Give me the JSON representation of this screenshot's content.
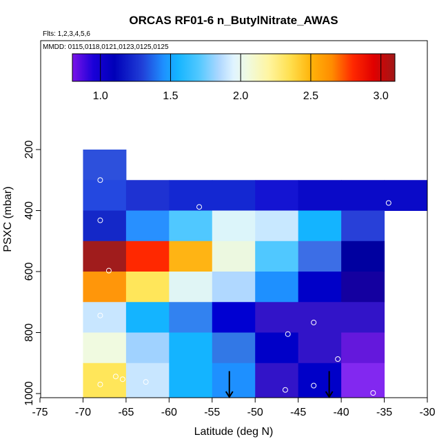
{
  "chart_data": {
    "type": "heatmap",
    "title": "ORCAS RF01-6 n_ButylNitrate_AWAS",
    "flights_label": "Flts: 1,2,3,4,5,6",
    "dates_label": "MMDD: 0115,0118,0121,0123,0125,0125",
    "xlabel": "Latitude (deg N)",
    "ylabel": "PSXC (mbar)",
    "xlim": [
      -75,
      -30
    ],
    "ylim": [
      1000,
      0
    ],
    "x_ticks": [
      -75,
      -70,
      -65,
      -60,
      -55,
      -50,
      -45,
      -40,
      -35,
      -30
    ],
    "y_ticks": [
      200,
      400,
      600,
      800,
      1000
    ],
    "colorbar": {
      "range": [
        0.8,
        3.1
      ],
      "ticks": [
        1.0,
        1.5,
        2.0,
        2.5,
        3.0
      ],
      "tick_labels": [
        "1.0",
        "1.5",
        "2.0",
        "2.5",
        "3.0"
      ],
      "stops": [
        {
          "v": 0.8,
          "c": "#7a14e8"
        },
        {
          "v": 0.95,
          "c": "#1a00d8"
        },
        {
          "v": 1.1,
          "c": "#0000b8"
        },
        {
          "v": 1.3,
          "c": "#2040d8"
        },
        {
          "v": 1.45,
          "c": "#1e90ff"
        },
        {
          "v": 1.55,
          "c": "#14b4ff"
        },
        {
          "v": 1.7,
          "c": "#50c8ff"
        },
        {
          "v": 1.85,
          "c": "#b0d8ff"
        },
        {
          "v": 1.95,
          "c": "#e0f4ff"
        },
        {
          "v": 2.05,
          "c": "#f0fae0"
        },
        {
          "v": 2.2,
          "c": "#fff5a0"
        },
        {
          "v": 2.35,
          "c": "#ffe050"
        },
        {
          "v": 2.5,
          "c": "#ffb40a"
        },
        {
          "v": 2.65,
          "c": "#ff8c00"
        },
        {
          "v": 2.8,
          "c": "#ff2800"
        },
        {
          "v": 2.95,
          "c": "#e00000"
        },
        {
          "v": 3.1,
          "c": "#a01818"
        }
      ]
    },
    "cells": [
      {
        "x0": -70,
        "x1": -65,
        "y0": 200,
        "y1": 300,
        "color": "#2d50dc"
      },
      {
        "x0": -70,
        "x1": -65,
        "y0": 300,
        "y1": 400,
        "color": "#2448e0"
      },
      {
        "x0": -65,
        "x1": -60,
        "y0": 300,
        "y1": 400,
        "color": "#1e32d2"
      },
      {
        "x0": -60,
        "x1": -55,
        "y0": 300,
        "y1": 400,
        "color": "#1428d2"
      },
      {
        "x0": -55,
        "x1": -50,
        "y0": 300,
        "y1": 400,
        "color": "#1428d2"
      },
      {
        "x0": -50,
        "x1": -45,
        "y0": 300,
        "y1": 400,
        "color": "#1414d2"
      },
      {
        "x0": -45,
        "x1": -40,
        "y0": 300,
        "y1": 400,
        "color": "#0a0ac8"
      },
      {
        "x0": -40,
        "x1": -35,
        "y0": 300,
        "y1": 400,
        "color": "#0a0ac8"
      },
      {
        "x0": -35,
        "x1": -30,
        "y0": 300,
        "y1": 400,
        "color": "#0a0ac8"
      },
      {
        "x0": -70,
        "x1": -65,
        "y0": 400,
        "y1": 500,
        "color": "#1428c8"
      },
      {
        "x0": -65,
        "x1": -60,
        "y0": 400,
        "y1": 500,
        "color": "#2890ff"
      },
      {
        "x0": -60,
        "x1": -55,
        "y0": 400,
        "y1": 500,
        "color": "#50c8ff"
      },
      {
        "x0": -55,
        "x1": -50,
        "y0": 400,
        "y1": 500,
        "color": "#dcf5fa"
      },
      {
        "x0": -50,
        "x1": -45,
        "y0": 400,
        "y1": 500,
        "color": "#c8e8ff"
      },
      {
        "x0": -45,
        "x1": -40,
        "y0": 400,
        "y1": 500,
        "color": "#14b4ff"
      },
      {
        "x0": -40,
        "x1": -35,
        "y0": 400,
        "y1": 500,
        "color": "#2840d8"
      },
      {
        "x0": -70,
        "x1": -65,
        "y0": 500,
        "y1": 600,
        "color": "#a01c1c"
      },
      {
        "x0": -65,
        "x1": -60,
        "y0": 500,
        "y1": 600,
        "color": "#ff2800"
      },
      {
        "x0": -60,
        "x1": -55,
        "y0": 500,
        "y1": 600,
        "color": "#ffb414"
      },
      {
        "x0": -55,
        "x1": -50,
        "y0": 500,
        "y1": 600,
        "color": "#ecf8e0"
      },
      {
        "x0": -50,
        "x1": -45,
        "y0": 500,
        "y1": 600,
        "color": "#50c8ff"
      },
      {
        "x0": -45,
        "x1": -40,
        "y0": 500,
        "y1": 600,
        "color": "#3c6ee6"
      },
      {
        "x0": -40,
        "x1": -35,
        "y0": 500,
        "y1": 600,
        "color": "#0000a0"
      },
      {
        "x0": -70,
        "x1": -65,
        "y0": 600,
        "y1": 700,
        "color": "#ff960a"
      },
      {
        "x0": -65,
        "x1": -60,
        "y0": 600,
        "y1": 700,
        "color": "#ffe65a"
      },
      {
        "x0": -60,
        "x1": -55,
        "y0": 600,
        "y1": 700,
        "color": "#e0f5f5"
      },
      {
        "x0": -55,
        "x1": -50,
        "y0": 600,
        "y1": 700,
        "color": "#b0d8ff"
      },
      {
        "x0": -50,
        "x1": -45,
        "y0": 600,
        "y1": 700,
        "color": "#1e90ff"
      },
      {
        "x0": -45,
        "x1": -40,
        "y0": 600,
        "y1": 700,
        "color": "#0000c8"
      },
      {
        "x0": -40,
        "x1": -35,
        "y0": 600,
        "y1": 700,
        "color": "#1400a0"
      },
      {
        "x0": -70,
        "x1": -65,
        "y0": 700,
        "y1": 800,
        "color": "#c8e6ff"
      },
      {
        "x0": -65,
        "x1": -60,
        "y0": 700,
        "y1": 800,
        "color": "#14b4ff"
      },
      {
        "x0": -60,
        "x1": -55,
        "y0": 700,
        "y1": 800,
        "color": "#3282f0"
      },
      {
        "x0": -55,
        "x1": -50,
        "y0": 700,
        "y1": 800,
        "color": "#0000d2"
      },
      {
        "x0": -50,
        "x1": -45,
        "y0": 700,
        "y1": 800,
        "color": "#3214c8"
      },
      {
        "x0": -45,
        "x1": -40,
        "y0": 700,
        "y1": 800,
        "color": "#3214c8"
      },
      {
        "x0": -40,
        "x1": -35,
        "y0": 700,
        "y1": 800,
        "color": "#3214c8"
      },
      {
        "x0": -70,
        "x1": -65,
        "y0": 800,
        "y1": 900,
        "color": "#f0fae0"
      },
      {
        "x0": -65,
        "x1": -60,
        "y0": 800,
        "y1": 900,
        "color": "#a0d2ff"
      },
      {
        "x0": -60,
        "x1": -55,
        "y0": 800,
        "y1": 900,
        "color": "#14b4ff"
      },
      {
        "x0": -55,
        "x1": -50,
        "y0": 800,
        "y1": 900,
        "color": "#3278e6"
      },
      {
        "x0": -50,
        "x1": -45,
        "y0": 800,
        "y1": 900,
        "color": "#0000c8"
      },
      {
        "x0": -45,
        "x1": -40,
        "y0": 800,
        "y1": 900,
        "color": "#3214c8"
      },
      {
        "x0": -40,
        "x1": -35,
        "y0": 800,
        "y1": 900,
        "color": "#6418dc"
      },
      {
        "x0": -70,
        "x1": -65,
        "y0": 900,
        "y1": 1000,
        "color": "#ffe65a"
      },
      {
        "x0": -65,
        "x1": -60,
        "y0": 900,
        "y1": 1000,
        "color": "#c8e6ff"
      },
      {
        "x0": -60,
        "x1": -55,
        "y0": 900,
        "y1": 1000,
        "color": "#14b4ff"
      },
      {
        "x0": -55,
        "x1": -50,
        "y0": 900,
        "y1": 1000,
        "color": "#1e90ff"
      },
      {
        "x0": -50,
        "x1": -45,
        "y0": 900,
        "y1": 1000,
        "color": "#3214c8"
      },
      {
        "x0": -45,
        "x1": -40,
        "y0": 900,
        "y1": 1000,
        "color": "#0000c8"
      },
      {
        "x0": -40,
        "x1": -35,
        "y0": 900,
        "y1": 1000,
        "color": "#8228f0"
      }
    ],
    "points": [
      {
        "x": -68,
        "y": 300
      },
      {
        "x": -68,
        "y": 432
      },
      {
        "x": -56.5,
        "y": 388
      },
      {
        "x": -34.5,
        "y": 375
      },
      {
        "x": -67,
        "y": 597
      },
      {
        "x": -68,
        "y": 744
      },
      {
        "x": -43.2,
        "y": 767
      },
      {
        "x": -46.2,
        "y": 805
      },
      {
        "x": -40.4,
        "y": 887
      },
      {
        "x": -66.2,
        "y": 944
      },
      {
        "x": -65.4,
        "y": 953
      },
      {
        "x": -68,
        "y": 970
      },
      {
        "x": -62.7,
        "y": 962
      },
      {
        "x": -46.5,
        "y": 988
      },
      {
        "x": -43.2,
        "y": 974
      },
      {
        "x": -36.3,
        "y": 998
      }
    ],
    "arrows": [
      {
        "x": -53,
        "y_top": 940,
        "y_bottom": 1000
      },
      {
        "x": -41.4,
        "y_top": 940,
        "y_bottom": 1000
      }
    ]
  }
}
